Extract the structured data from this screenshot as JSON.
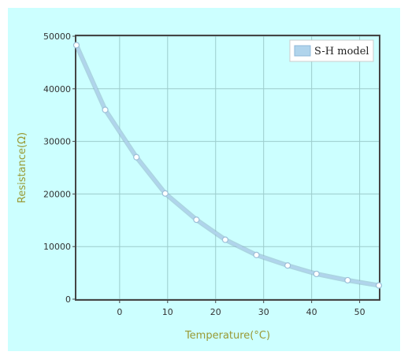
{
  "chart_data": {
    "type": "line",
    "xlabel": "Temperature(°C)",
    "ylabel": "Resistance(Ω)",
    "xlim": [
      -9,
      54
    ],
    "ylim": [
      0,
      50000
    ],
    "x_ticks": [
      "0",
      "10",
      "20",
      "30",
      "40",
      "50"
    ],
    "y_ticks": [
      "0",
      "10000",
      "20000",
      "30000",
      "40000",
      "50000"
    ],
    "grid": true,
    "legend_position": "top-right",
    "series": [
      {
        "name": "S-H model",
        "color": "#b0d4ec",
        "x": [
          -9,
          -3,
          3.5,
          9.5,
          16,
          22,
          28.5,
          35,
          41,
          47.5,
          54
        ],
        "y": [
          48300,
          36000,
          27000,
          20100,
          15100,
          11300,
          8400,
          6400,
          4800,
          3600,
          2600
        ]
      }
    ]
  }
}
